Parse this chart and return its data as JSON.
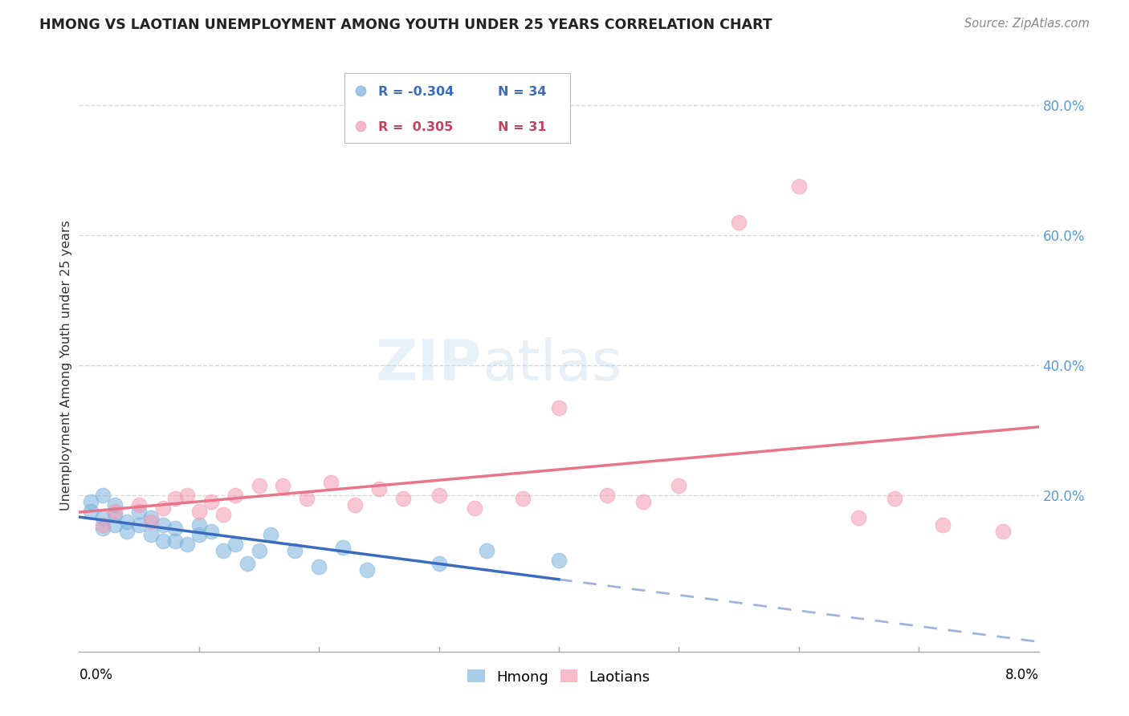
{
  "title": "HMONG VS LAOTIAN UNEMPLOYMENT AMONG YOUTH UNDER 25 YEARS CORRELATION CHART",
  "source": "Source: ZipAtlas.com",
  "ylabel": "Unemployment Among Youth under 25 years",
  "xmin": 0.0,
  "xmax": 0.08,
  "ymin": -0.04,
  "ymax": 0.84,
  "legend_R_hmong": "R = -0.304",
  "legend_N_hmong": "N = 34",
  "legend_R_laotian": "R =  0.305",
  "legend_N_laotian": "N = 31",
  "hmong_color": "#7ab3de",
  "laotian_color": "#f49ab0",
  "hmong_line_color": "#3a6bbf",
  "laotian_line_color": "#e8758a",
  "watermark_zip": "ZIP",
  "watermark_atlas": "atlas",
  "background_color": "#ffffff",
  "grid_color": "#d8d8d8",
  "hmong_x": [
    0.001,
    0.001,
    0.002,
    0.002,
    0.002,
    0.003,
    0.003,
    0.003,
    0.004,
    0.004,
    0.005,
    0.005,
    0.006,
    0.006,
    0.007,
    0.007,
    0.008,
    0.008,
    0.009,
    0.01,
    0.01,
    0.011,
    0.012,
    0.013,
    0.014,
    0.015,
    0.016,
    0.018,
    0.02,
    0.022,
    0.024,
    0.03,
    0.034,
    0.04
  ],
  "hmong_y": [
    0.175,
    0.19,
    0.2,
    0.165,
    0.15,
    0.185,
    0.17,
    0.155,
    0.16,
    0.145,
    0.175,
    0.155,
    0.165,
    0.14,
    0.155,
    0.13,
    0.15,
    0.13,
    0.125,
    0.155,
    0.14,
    0.145,
    0.115,
    0.125,
    0.095,
    0.115,
    0.14,
    0.115,
    0.09,
    0.12,
    0.085,
    0.095,
    0.115,
    0.1
  ],
  "laotian_x": [
    0.002,
    0.003,
    0.005,
    0.006,
    0.007,
    0.008,
    0.009,
    0.01,
    0.011,
    0.012,
    0.013,
    0.015,
    0.017,
    0.019,
    0.021,
    0.023,
    0.025,
    0.027,
    0.03,
    0.033,
    0.037,
    0.04,
    0.044,
    0.047,
    0.05,
    0.055,
    0.06,
    0.065,
    0.068,
    0.072,
    0.077
  ],
  "laotian_y": [
    0.155,
    0.175,
    0.185,
    0.16,
    0.18,
    0.195,
    0.2,
    0.175,
    0.19,
    0.17,
    0.2,
    0.215,
    0.215,
    0.195,
    0.22,
    0.185,
    0.21,
    0.195,
    0.2,
    0.18,
    0.195,
    0.335,
    0.2,
    0.19,
    0.215,
    0.62,
    0.675,
    0.165,
    0.195,
    0.155,
    0.145
  ],
  "dot_size": 180,
  "dot_alpha": 0.55
}
